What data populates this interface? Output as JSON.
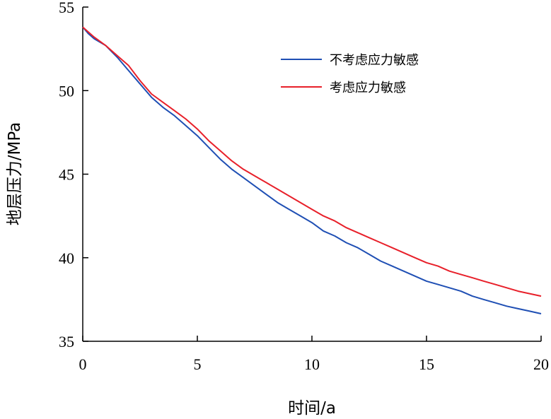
{
  "chart_data": {
    "type": "line",
    "xlabel": "时间/a",
    "ylabel": "地层压力/MPa",
    "xlim": [
      0,
      20
    ],
    "ylim": [
      35,
      55
    ],
    "xticks": [
      0,
      5,
      10,
      15,
      20
    ],
    "yticks": [
      35,
      40,
      45,
      50,
      55
    ],
    "grid": false,
    "legend_position": "top-right",
    "series": [
      {
        "name": "不考虑应力敏感",
        "color": "#1f4fb4",
        "x": [
          0,
          0.25,
          0.5,
          1,
          1.5,
          2,
          2.5,
          3,
          3.5,
          4,
          4.5,
          5,
          5.5,
          6,
          6.5,
          7,
          7.5,
          8,
          8.5,
          9,
          9.5,
          10,
          10.5,
          11,
          11.5,
          12,
          12.5,
          13,
          13.5,
          14,
          14.5,
          15,
          15.5,
          16,
          16.5,
          17,
          17.5,
          18,
          18.5,
          19,
          19.5,
          20
        ],
        "values": [
          53.8,
          53.4,
          53.1,
          52.7,
          52.0,
          51.2,
          50.4,
          49.6,
          49.0,
          48.5,
          47.9,
          47.3,
          46.6,
          45.9,
          45.3,
          44.8,
          44.3,
          43.8,
          43.3,
          42.9,
          42.5,
          42.1,
          41.6,
          41.3,
          40.9,
          40.6,
          40.2,
          39.8,
          39.5,
          39.2,
          38.9,
          38.6,
          38.4,
          38.2,
          38.0,
          37.7,
          37.5,
          37.3,
          37.1,
          36.95,
          36.8,
          36.65
        ]
      },
      {
        "name": "考虑应力敏感",
        "color": "#e8202a",
        "x": [
          0,
          0.25,
          0.5,
          1,
          1.5,
          2,
          2.5,
          3,
          3.5,
          4,
          4.5,
          5,
          5.5,
          6,
          6.5,
          7,
          7.5,
          8,
          8.5,
          9,
          9.5,
          10,
          10.5,
          11,
          11.5,
          12,
          12.5,
          13,
          13.5,
          14,
          14.5,
          15,
          15.5,
          16,
          16.5,
          17,
          17.5,
          18,
          18.5,
          19,
          19.5,
          20
        ],
        "values": [
          53.8,
          53.5,
          53.2,
          52.7,
          52.1,
          51.5,
          50.6,
          49.8,
          49.3,
          48.8,
          48.3,
          47.7,
          47.0,
          46.4,
          45.8,
          45.3,
          44.9,
          44.5,
          44.1,
          43.7,
          43.3,
          42.9,
          42.5,
          42.2,
          41.8,
          41.5,
          41.2,
          40.9,
          40.6,
          40.3,
          40.0,
          39.7,
          39.5,
          39.2,
          39.0,
          38.8,
          38.6,
          38.4,
          38.2,
          38.0,
          37.85,
          37.7
        ]
      }
    ]
  }
}
